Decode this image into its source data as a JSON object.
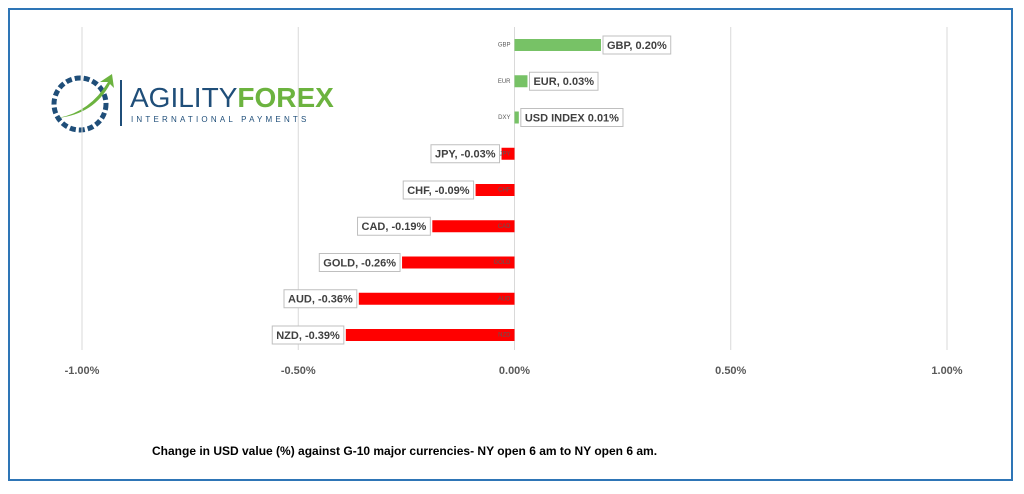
{
  "logo": {
    "name_a": "AGILITY",
    "name_b": "FOREX",
    "tagline": "INTERNATIONAL PAYMENTS"
  },
  "chart_data": {
    "type": "bar",
    "orientation": "horizontal",
    "caption": "Change in  USD value (%)  against  G-10 major currencies- NY open 6 am to NY open 6 am.",
    "categories": [
      "GBP",
      "EUR",
      "DXY",
      "JPY",
      "CHF",
      "CAD",
      "GOLD",
      "AUD",
      "NZD"
    ],
    "values": [
      0.2,
      0.03,
      0.01,
      -0.03,
      -0.09,
      -0.19,
      -0.26,
      -0.36,
      -0.39
    ],
    "value_labels": [
      "GBP, 0.20%",
      "EUR, 0.03%",
      "USD INDEX 0.01%",
      "JPY, -0.03%",
      "CHF, -0.09%",
      "CAD, -0.19%",
      "GOLD, -0.26%",
      "AUD, -0.36%",
      "NZD, -0.39%"
    ],
    "positive_color": "#77c266",
    "negative_color": "#ff0000",
    "xlim": [
      -1,
      1
    ],
    "xticks": [
      {
        "value": -1,
        "label": "-1.00%"
      },
      {
        "value": -0.5,
        "label": "-0.50%"
      },
      {
        "value": 0,
        "label": "0.00%"
      },
      {
        "value": 0.5,
        "label": "0.50%"
      },
      {
        "value": 1,
        "label": "1.00%"
      }
    ],
    "grid": true
  }
}
